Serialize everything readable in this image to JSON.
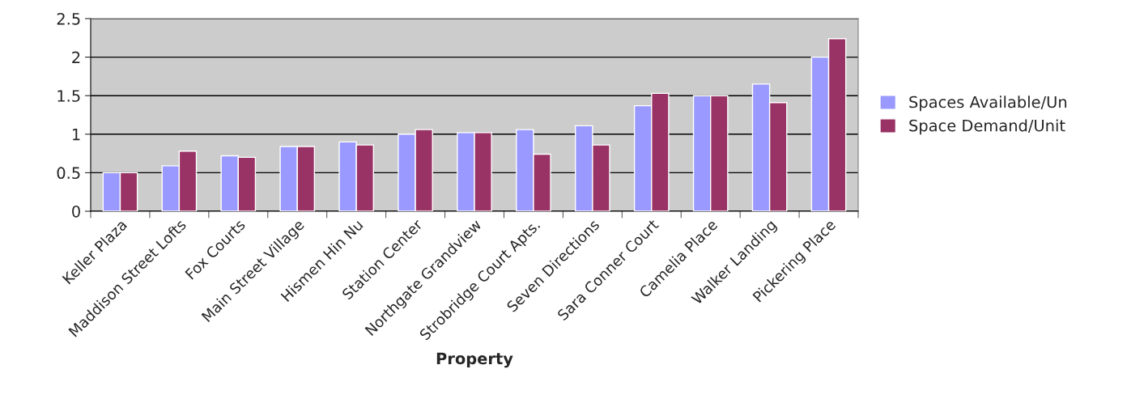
{
  "chart_data": {
    "type": "bar",
    "xlabel": "Property",
    "categories": [
      "Keller Plaza",
      "Maddison Street Lofts",
      "Fox Courts",
      "Main Street Village",
      "Hismen Hin Nu",
      "Station Center",
      "Northgate Grandview",
      "Strobridge Court Apts.",
      "Seven Directions",
      "Sara Conner Court",
      "Camelia Place",
      "Walker Landing",
      "Pickering Place"
    ],
    "series": [
      {
        "name": "Spaces Available/Un",
        "color": "#9999ff",
        "values": [
          0.5,
          0.59,
          0.72,
          0.84,
          0.9,
          1.0,
          1.02,
          1.06,
          1.11,
          1.37,
          1.5,
          1.65,
          2.0
        ]
      },
      {
        "name": "Space Demand/Unit",
        "color": "#993366",
        "values": [
          0.5,
          0.78,
          0.7,
          0.84,
          0.86,
          1.06,
          1.02,
          0.74,
          0.86,
          1.53,
          1.5,
          1.41,
          2.24
        ]
      }
    ],
    "ylim": [
      0,
      2.5
    ],
    "yticks": [
      0,
      0.5,
      1,
      1.5,
      2,
      2.5
    ],
    "grid": "y",
    "legend": "right"
  }
}
